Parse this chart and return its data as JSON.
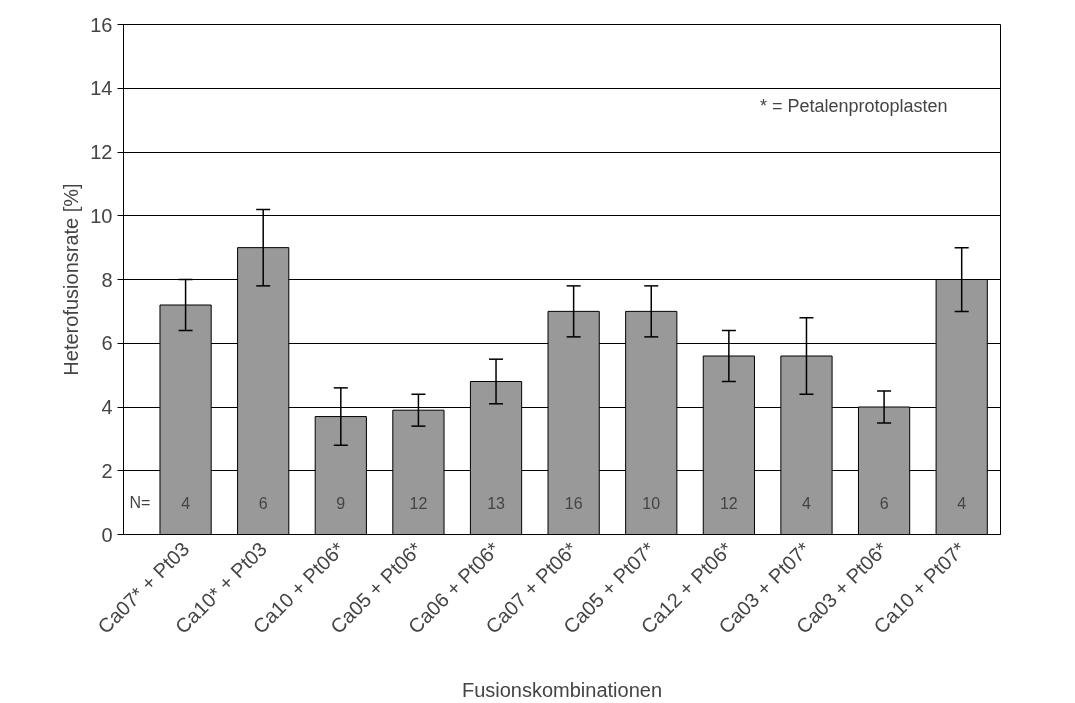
{
  "chart_data": {
    "type": "bar",
    "xlabel": "Fusionskombinationen",
    "ylabel": "Heterofusionsrate [%]",
    "categories": [
      "Ca07* + Pt03",
      "Ca10* + Pt03",
      "Ca10 + Pt06*",
      "Ca05 + Pt06*",
      "Ca06 + Pt06*",
      "Ca07 + Pt06*",
      "Ca05 + Pt07*",
      "Ca12 + Pt06*",
      "Ca03 + Pt07*",
      "Ca03 + Pt06*",
      "Ca10 + Pt07*"
    ],
    "values": [
      7.2,
      9.0,
      3.7,
      3.9,
      4.8,
      7.0,
      7.0,
      5.6,
      5.6,
      4.0,
      8.0
    ],
    "errors": [
      0.8,
      1.2,
      0.9,
      0.5,
      0.7,
      0.8,
      0.8,
      0.8,
      1.2,
      0.5,
      1.0
    ],
    "color": "#999999",
    "ylim": [
      0,
      16
    ],
    "yticks": [
      0,
      2,
      4,
      6,
      8,
      10,
      12,
      14,
      16
    ],
    "grid": "y",
    "annotations": [
      "* = Petalenprotoplasten",
      "N=",
      "4",
      "6",
      "9",
      "12",
      "13",
      "16",
      "10",
      "12",
      "4",
      "6",
      "4"
    ]
  }
}
